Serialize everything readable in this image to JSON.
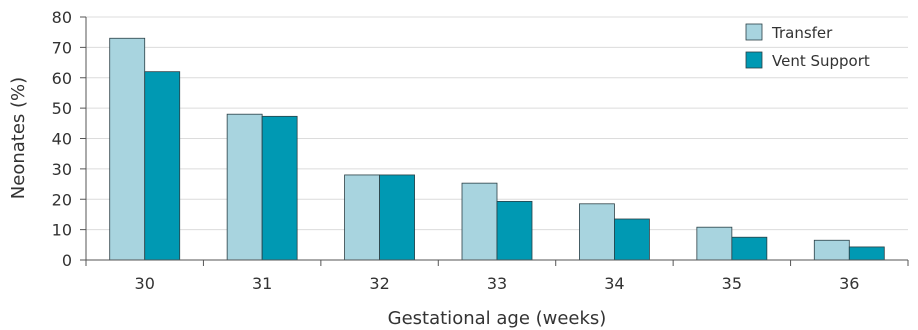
{
  "chart_data": {
    "type": "bar",
    "title": "",
    "xlabel": "Gestational age (weeks)",
    "ylabel": "Neonates (%)",
    "categories": [
      "30",
      "31",
      "32",
      "33",
      "34",
      "35",
      "36"
    ],
    "series": [
      {
        "name": "Transfer",
        "color": "#a8d4df",
        "values": [
          73,
          48,
          28,
          25.3,
          18.5,
          10.8,
          6.5
        ]
      },
      {
        "name": "Vent Support",
        "color": "#0099b3",
        "values": [
          62,
          47.3,
          28,
          19.3,
          13.5,
          7.5,
          4.3
        ]
      }
    ],
    "ylim": [
      0,
      80
    ],
    "yticks": [
      "0",
      "10",
      "20",
      "30",
      "40",
      "50",
      "60",
      "70",
      "80"
    ],
    "grid": true,
    "legend_position": "top-right"
  }
}
